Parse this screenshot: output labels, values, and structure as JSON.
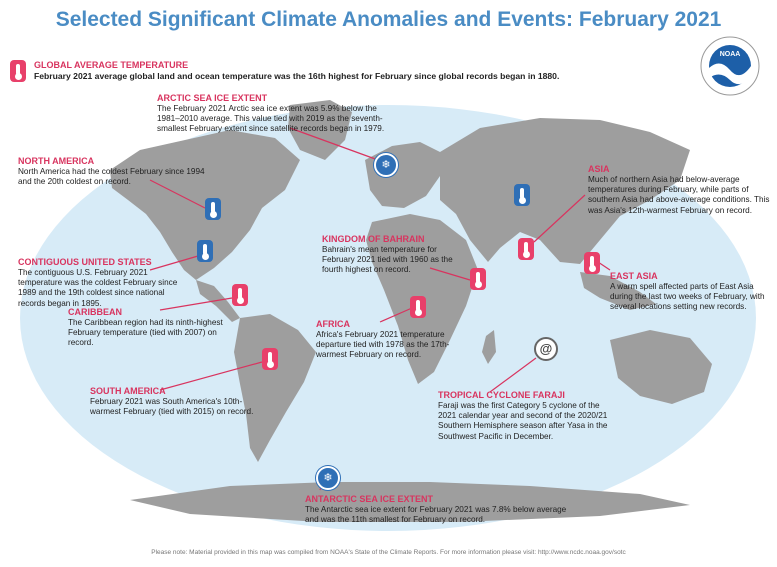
{
  "title": "Selected Significant Climate Anomalies and Events: February 2021",
  "global": {
    "heading": "GLOBAL AVERAGE TEMPERATURE",
    "text": "February 2021 average global land and ocean temperature was the 16th highest for February since global records began in 1880."
  },
  "annotations": {
    "arctic": {
      "heading": "ARCTIC SEA ICE EXTENT",
      "text": "The February 2021 Arctic sea ice extent was 5.9% below the 1981–2010 average. This value tied with 2019 as the seventh-smallest February extent since satellite records began in 1979."
    },
    "north_america": {
      "heading": "NORTH AMERICA",
      "text": "North America had the coldest February since 1994 and the 20th coldest on record."
    },
    "contiguous_us": {
      "heading": "CONTIGUOUS UNITED STATES",
      "text": "The contiguous U.S. February 2021 temperature was the coldest February since 1989 and the 19th coldest since national records began in 1895."
    },
    "caribbean": {
      "heading": "CARIBBEAN",
      "text": "The Caribbean region had its ninth-highest February temperature (tied with 2007) on record."
    },
    "south_america": {
      "heading": "SOUTH AMERICA",
      "text": "February 2021 was South America's 10th-warmest February (tied with 2015) on record."
    },
    "bahrain": {
      "heading": "KINGDOM OF BAHRAIN",
      "text": "Bahrain's mean temperature for February 2021 tied with 1960 as the fourth highest on record."
    },
    "africa": {
      "heading": "AFRICA",
      "text": "Africa's February 2021 temperature departure tied with 1978 as the 17th-warmest February on record."
    },
    "asia": {
      "heading": "ASIA",
      "text": "Much of northern Asia had below-average temperatures during February, while parts of southern Asia had above-average conditions. This was Asia's 12th-warmest February on record."
    },
    "east_asia": {
      "heading": "EAST ASIA",
      "text": "A warm spell affected parts of East Asia during the last two weeks of February, with several locations setting new records."
    },
    "faraji": {
      "heading": "TROPICAL CYCLONE FARAJI",
      "text": "Faraji was the first Category 5 cyclone of the 2021 calendar year and second of the 2020/21 Southern Hemisphere season after Yasa in the Southwest Pacific in December."
    },
    "antarctic": {
      "heading": "ANTARCTIC SEA ICE EXTENT",
      "text": "The Antarctic sea ice extent for February 2021 was 7.8% below average and was the 11th smallest for February on record."
    }
  },
  "logo_text": "NOAA",
  "footer": "Please note: Material provided in this map was compiled from NOAA's State of the Climate Reports. For more information please visit: http://www.ncdc.noaa.gov/sotc",
  "colors": {
    "accent": "#d8345f",
    "title": "#4a8cc4",
    "warm": "#e8406a",
    "cold": "#2f6fb6",
    "ocean": "#d7ebf7",
    "land": "#9e9e9e"
  }
}
